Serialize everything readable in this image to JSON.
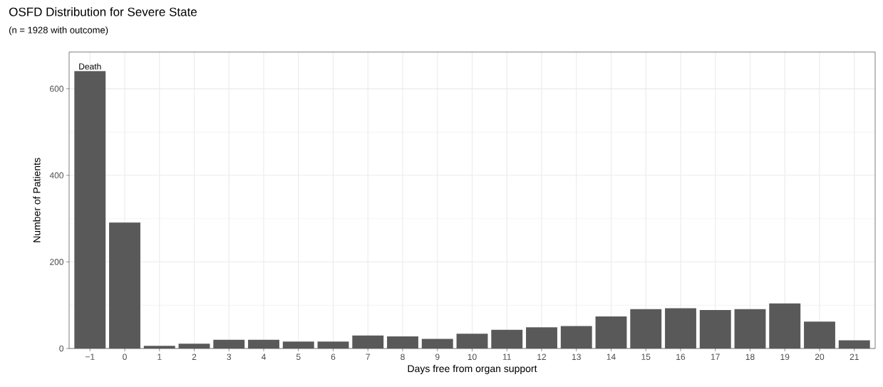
{
  "chart_data": {
    "type": "bar",
    "title": "OSFD Distribution for Severe State",
    "subtitle": "(n = 1928 with outcome)",
    "xlabel": "Days free from organ support",
    "ylabel": "Number of Patients",
    "categories": [
      "−1",
      "0",
      "1",
      "2",
      "3",
      "4",
      "5",
      "6",
      "7",
      "8",
      "9",
      "10",
      "11",
      "12",
      "13",
      "14",
      "15",
      "16",
      "17",
      "18",
      "19",
      "20",
      "21"
    ],
    "values": [
      641,
      291,
      6,
      11,
      20,
      20,
      16,
      16,
      30,
      28,
      22,
      34,
      43,
      49,
      52,
      74,
      91,
      93,
      89,
      91,
      104,
      62,
      19
    ],
    "color": "#595959",
    "ylim": [
      0,
      685
    ],
    "yticks": [
      0,
      200,
      400,
      600
    ],
    "grid": true,
    "annotations": [
      {
        "text": "Death",
        "x": "−1",
        "y": 641
      }
    ]
  }
}
